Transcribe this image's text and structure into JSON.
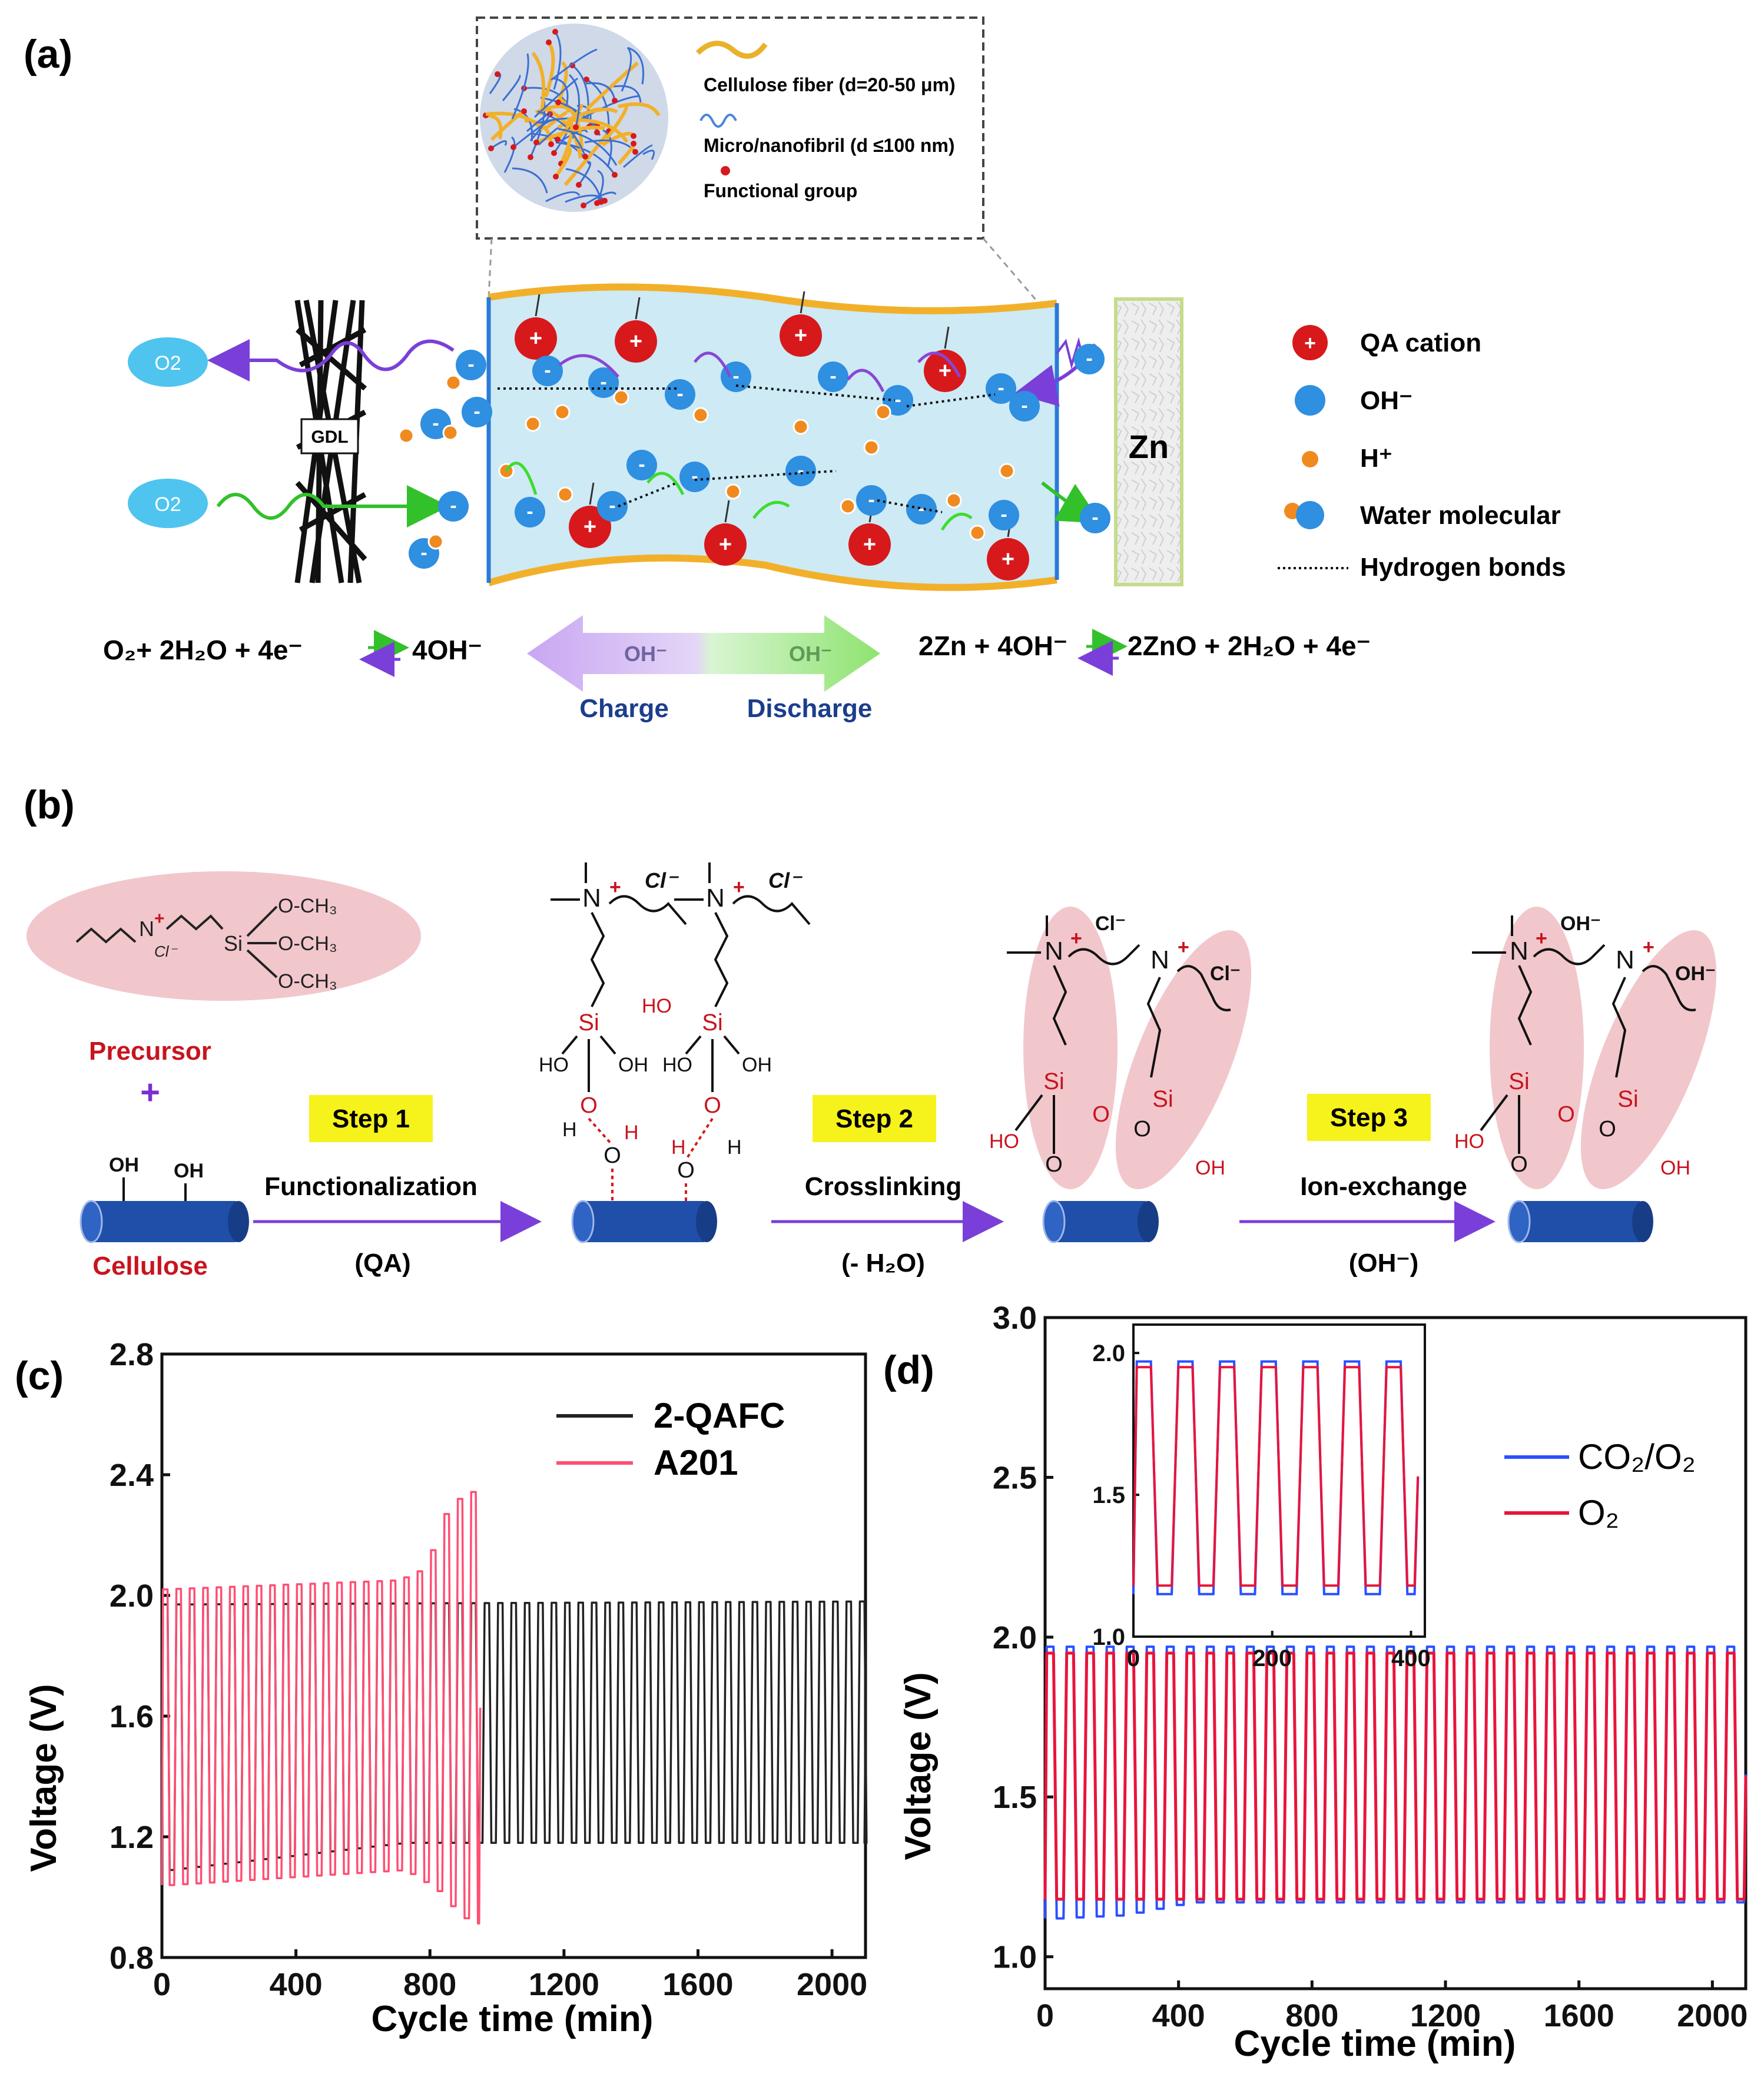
{
  "colors": {
    "membrane_fill": "#cdeaf5",
    "membrane_edge": "#f2b02a",
    "qa_cation": "#d7191c",
    "hydroxide": "#2f8fe0",
    "proton": "#f08a1e",
    "charge_arrow": "#8a45d6",
    "discharge_arrow": "#3ddc2d",
    "pink_highlight": "#f1c7cc",
    "step_box": "#f6f21c",
    "cellulose": "#1f4fa8",
    "red_text": "#c8141e",
    "purple_text": "#7a2fd0",
    "series_2qafc": "#222222",
    "series_a201": "#ff4f73",
    "series_co2o2": "#2a50ff",
    "series_o2": "#e8143c"
  },
  "panel_a": {
    "label": "(a)",
    "inset_legend": {
      "fiber": "Cellulose fiber (d=20-50 μm)",
      "fibril": "Micro/nanofibril (d ≤100 nm)",
      "group": "Functional group"
    },
    "o2_top": "O2",
    "o2_bottom": "O2",
    "gdl": "GDL",
    "zn": "Zn",
    "legend": {
      "qa": "QA cation",
      "oh": "OH⁻",
      "h": "H⁺",
      "water": "Water molecular",
      "hbond": "Hydrogen bonds"
    },
    "ion_symbol_plus": "+",
    "ion_symbol_minus": "-",
    "equation_left": "O₂+ 2H₂O + 4e⁻",
    "equation_left_product": "4OH⁻",
    "equation_right": "2Zn + 4OH⁻",
    "equation_right_product": "2ZnO + 2H₂O + 4e⁻",
    "arrow_left_text": "OH⁻",
    "arrow_right_text": "OH⁻",
    "charge": "Charge",
    "discharge": "Discharge"
  },
  "panel_b": {
    "label": "(b)",
    "precursor": "Precursor",
    "plus": "+",
    "cellulose": "Cellulose",
    "step1": "Step 1",
    "step2": "Step 2",
    "step3": "Step 3",
    "func": "Functionalization",
    "func_sub": "(QA)",
    "cross": "Crosslinking",
    "cross_sub": "(- H₂O)",
    "ionex": "Ion-exchange",
    "ionex_sub": "(OH⁻)",
    "ome1": "O-CH₃",
    "ome2": "O-CH₃",
    "ome3": "O-CH₃",
    "si": "Si",
    "n": "N",
    "plus_sign": "+",
    "cl": "Cl⁻",
    "oh_anion": "OH⁻",
    "ho": "HO",
    "oh": "OH",
    "o": "O",
    "h": "H"
  },
  "chart_data": [
    {
      "panel": "(c)",
      "type": "line",
      "xlabel": "Cycle time (min)",
      "ylabel": "Voltage (V)",
      "xlim": [
        0,
        2100
      ],
      "ylim": [
        0.8,
        2.8
      ],
      "xticks": [
        "0",
        "400",
        "800",
        "1200",
        "1600",
        "2000"
      ],
      "yticks": [
        "0.8",
        "1.2",
        "1.6",
        "2.0",
        "2.4",
        "2.8"
      ],
      "legend_position": "top-right",
      "cycle_period_min": 40,
      "series": [
        {
          "name": "2-QAFC",
          "color": "#222222",
          "x_range": [
            0,
            2100
          ],
          "charge_V_start": 1.97,
          "charge_V_end": 1.98,
          "discharge_V_start": 1.09,
          "discharge_V_end": 1.18
        },
        {
          "name": "A201",
          "color": "#ff4f73",
          "x_range": [
            0,
            950
          ],
          "charge_V_points": [
            [
              0,
              2.02
            ],
            [
              700,
              2.05
            ],
            [
              760,
              2.08
            ],
            [
              800,
              2.15
            ],
            [
              840,
              2.27
            ],
            [
              880,
              2.32
            ],
            [
              950,
              2.36
            ]
          ],
          "discharge_V_points": [
            [
              0,
              1.04
            ],
            [
              700,
              1.09
            ],
            [
              760,
              1.05
            ],
            [
              800,
              1.02
            ],
            [
              840,
              0.97
            ],
            [
              880,
              0.93
            ],
            [
              950,
              0.9
            ]
          ]
        }
      ]
    },
    {
      "panel": "(d)",
      "type": "line",
      "xlabel": "Cycle time (min)",
      "ylabel": "Voltage (V)",
      "xlim": [
        0,
        2100
      ],
      "ylim": [
        0.9,
        3.0
      ],
      "xticks": [
        "0",
        "400",
        "800",
        "1200",
        "1600",
        "2000"
      ],
      "yticks": [
        "1.0",
        "1.5",
        "2.0",
        "2.5",
        "3.0"
      ],
      "legend_position": "top-right",
      "cycle_period_min": 60,
      "series": [
        {
          "name": "CO₂/O₂",
          "color": "#2a50ff",
          "charge_V": 1.97,
          "discharge_V_points": [
            [
              0,
              1.12
            ],
            [
              200,
              1.13
            ],
            [
              400,
              1.17
            ],
            [
              2100,
              1.17
            ]
          ]
        },
        {
          "name": "O₂",
          "color": "#e8143c",
          "charge_V": 1.95,
          "discharge_V": 1.18
        }
      ],
      "inset": {
        "xlim": [
          0,
          420
        ],
        "ylim": [
          1.0,
          2.1
        ],
        "xticks": [
          "0",
          "200",
          "400"
        ],
        "yticks": [
          "1.0",
          "1.5",
          "2.0"
        ],
        "cycle_period_min": 60,
        "charge_V": 1.97,
        "discharge_V_co2o2": 1.15,
        "discharge_V_o2": 1.18
      }
    }
  ]
}
